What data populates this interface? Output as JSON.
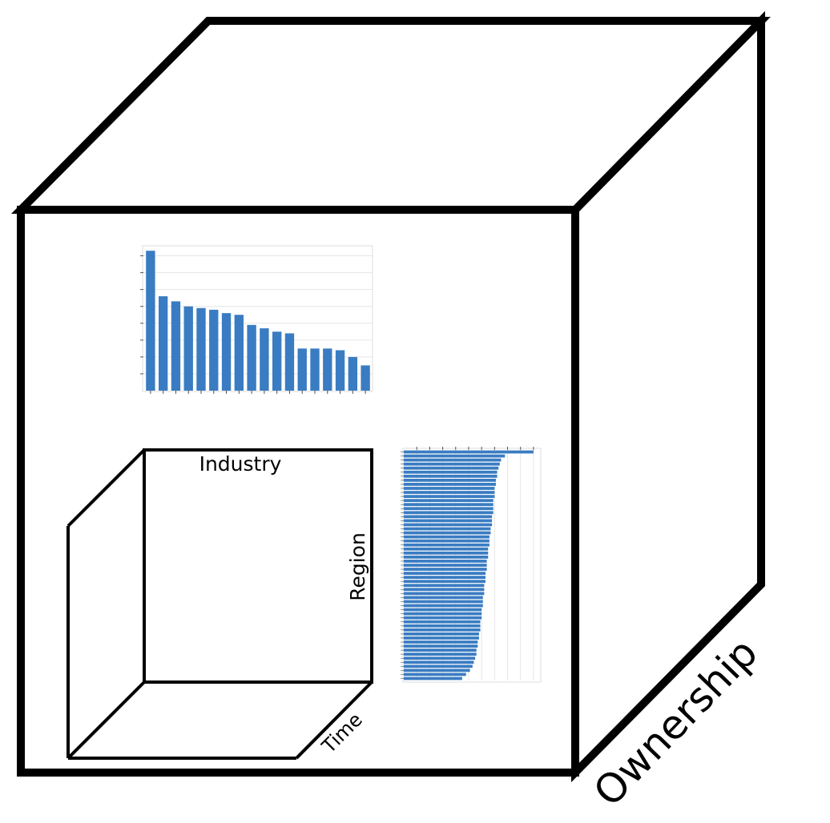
{
  "labels": {
    "outer_axis": "Ownership",
    "inner_top": "Industry",
    "inner_side": "Region",
    "inner_depth": "Time"
  },
  "colors": {
    "stroke": "#000000",
    "bar": "#3a7cc2",
    "axis": "#555555",
    "grid": "#e6e6e6"
  },
  "chart_data": [
    {
      "type": "bar",
      "orientation": "vertical",
      "values": [
        8.3,
        5.6,
        5.3,
        5.0,
        4.9,
        4.8,
        4.6,
        4.5,
        3.9,
        3.7,
        3.5,
        3.4,
        2.5,
        2.5,
        2.5,
        2.4,
        2.0,
        1.5
      ],
      "ylim": [
        0,
        8.5
      ],
      "grid": true
    },
    {
      "type": "bar",
      "orientation": "horizontal",
      "values": [
        100,
        78,
        75,
        74,
        73,
        72,
        72,
        71,
        71,
        70,
        70,
        70,
        69,
        69,
        69,
        69,
        68,
        68,
        68,
        67,
        67,
        66,
        66,
        66,
        65,
        65,
        65,
        64,
        64,
        64,
        63,
        63,
        63,
        62,
        62,
        62,
        61,
        61,
        61,
        60,
        60,
        60,
        59,
        59,
        59,
        58,
        58,
        57,
        57,
        56,
        56,
        55,
        54,
        53,
        51,
        48,
        45
      ],
      "xlim": [
        0,
        105
      ],
      "grid": true
    }
  ]
}
